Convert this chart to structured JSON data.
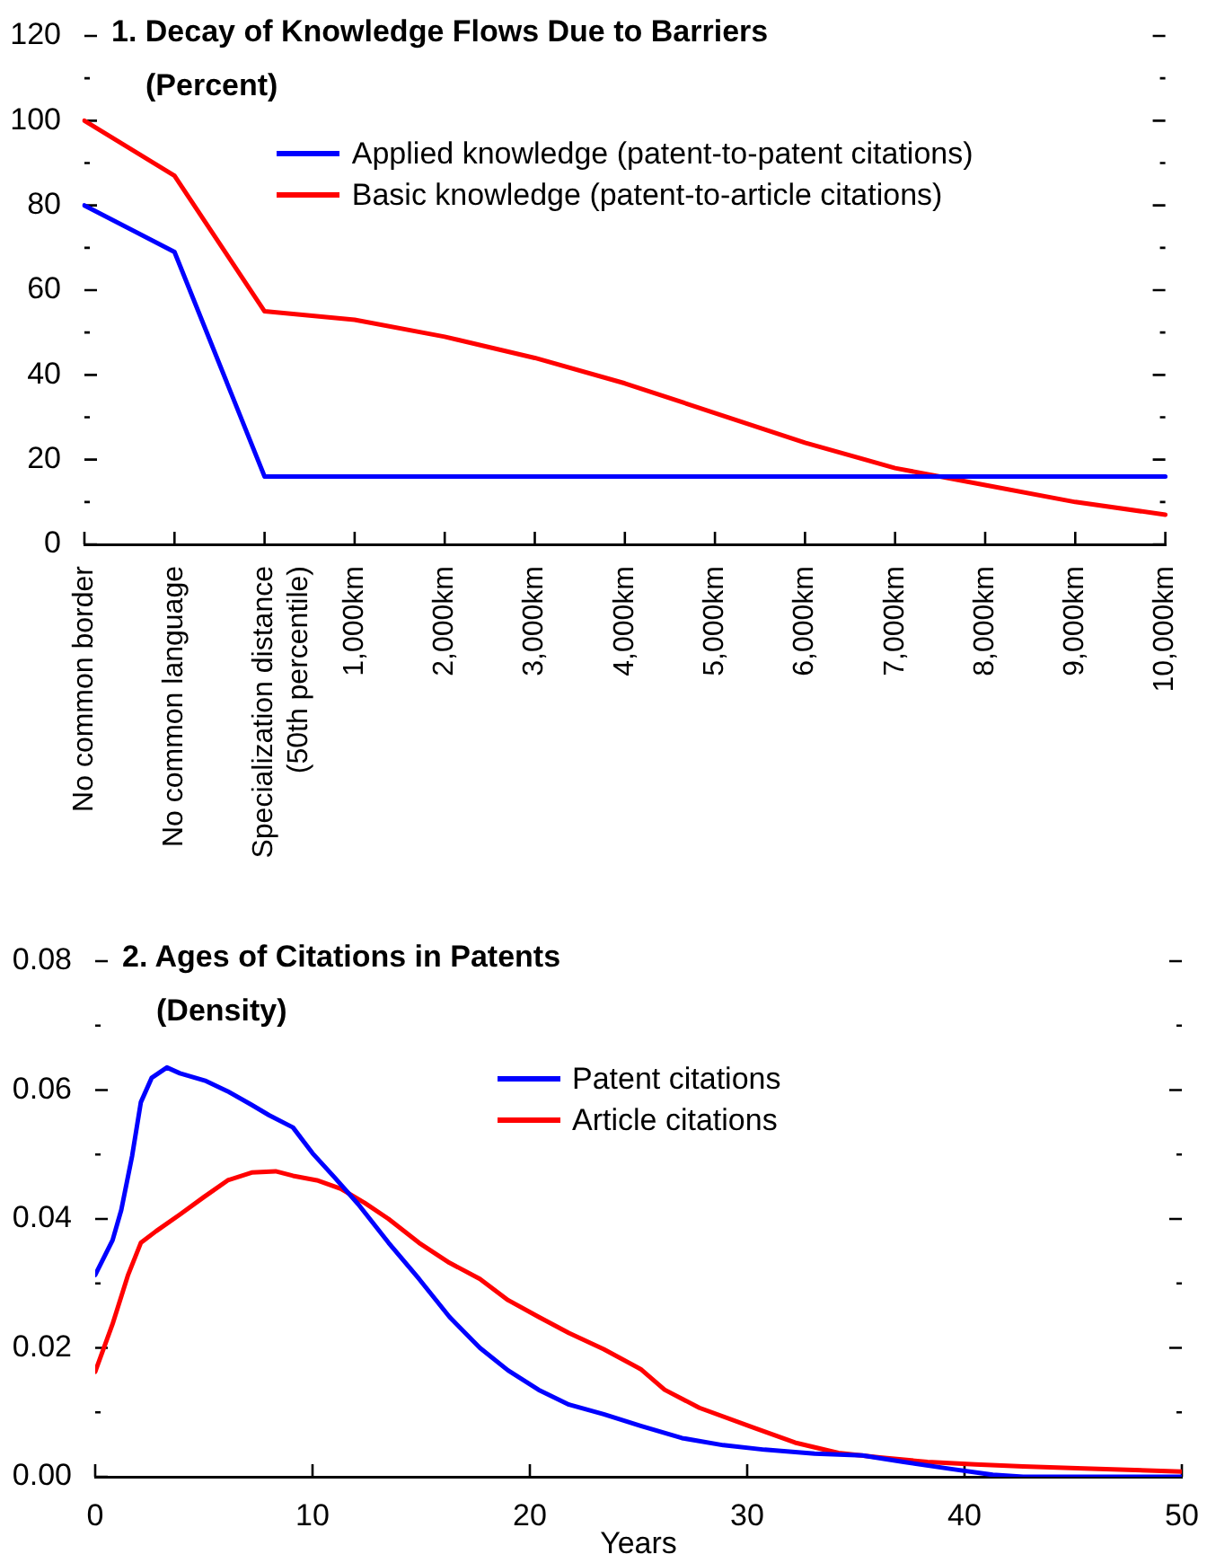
{
  "chart_data": [
    {
      "type": "line",
      "title": "1. Decay of Knowledge Flows Due to Barriers",
      "subtitle": "(Percent)",
      "categories": [
        "No common border",
        "No common language",
        "Specialization distance (50th percentile)",
        "1,000km",
        "2,000km",
        "3,000km",
        "4,000km",
        "5,000km",
        "6,000km",
        "7,000km",
        "8,000km",
        "9,000km",
        "10,000km"
      ],
      "series": [
        {
          "name": "Applied knowledge (patent-to-patent citations)",
          "color": "#0000ff",
          "values": [
            80,
            69,
            16,
            16,
            16,
            16,
            16,
            16,
            16,
            16,
            16,
            16,
            16
          ]
        },
        {
          "name": "Basic knowledge (patent-to-article citations)",
          "color": "#ff0000",
          "values": [
            100,
            87,
            55,
            53,
            49,
            44,
            38,
            31,
            24,
            18,
            14,
            10,
            7
          ]
        }
      ],
      "ylim": [
        0,
        120
      ],
      "yticks": [
        0,
        {
          "value": 10,
          "label": null
        },
        20,
        {
          "value": 30,
          "label": null
        },
        40,
        {
          "value": 50,
          "label": null
        },
        60,
        {
          "value": 70,
          "label": null
        },
        80,
        {
          "value": 90,
          "label": null
        },
        100,
        {
          "value": 110,
          "label": null
        },
        120
      ],
      "legend": "top"
    },
    {
      "type": "line",
      "title": "2. Ages of Citations in Patents",
      "subtitle": "(Density)",
      "xlabel": "Years",
      "series": [
        {
          "name": "Patent citations",
          "color": "#0000ff",
          "x": [
            0,
            0.8,
            1.2,
            1.7,
            2.1,
            2.6,
            3.3,
            3.9,
            5.1,
            6.1,
            7.2,
            8.0,
            9.1,
            10.0,
            11.0,
            12.1,
            13.5,
            14.9,
            16.3,
            17.7,
            19.0,
            20.4,
            21.8,
            23.4,
            25.1,
            27.0,
            28.9,
            30.8,
            33.1,
            35.3,
            37.2,
            39.4,
            41.3,
            42.7,
            50
          ],
          "values": [
            0.0313,
            0.0367,
            0.0414,
            0.0498,
            0.0581,
            0.0619,
            0.0635,
            0.0626,
            0.0614,
            0.0598,
            0.0577,
            0.0561,
            0.0542,
            0.0502,
            0.0465,
            0.0423,
            0.0363,
            0.0307,
            0.0248,
            0.02,
            0.0165,
            0.0135,
            0.0112,
            0.0097,
            0.0079,
            0.006,
            0.0049,
            0.0042,
            0.0036,
            0.0033,
            0.0023,
            0.0012,
            0.0003,
            0,
            0
          ]
        },
        {
          "name": "Article citations",
          "color": "#ff0000",
          "x": [
            0,
            0.8,
            1.5,
            2.1,
            2.8,
            3.9,
            5.0,
            6.1,
            7.2,
            8.3,
            9.1,
            10.2,
            11.3,
            12.4,
            13.5,
            14.9,
            16.3,
            17.7,
            19.0,
            20.4,
            21.8,
            23.4,
            25.1,
            26.2,
            27.8,
            30.3,
            32.2,
            34.2,
            36.1,
            38.3,
            40.5,
            42.7,
            45.5,
            50
          ],
          "values": [
            0.0163,
            0.0237,
            0.0312,
            0.0363,
            0.0381,
            0.0407,
            0.0434,
            0.046,
            0.0472,
            0.0474,
            0.0467,
            0.046,
            0.0447,
            0.0425,
            0.04,
            0.0363,
            0.0332,
            0.0307,
            0.0274,
            0.0248,
            0.0223,
            0.0198,
            0.0167,
            0.0135,
            0.0107,
            0.0076,
            0.0053,
            0.0037,
            0.003,
            0.0023,
            0.0019,
            0.0016,
            0.0013,
            0.0008
          ]
        }
      ],
      "xlim": [
        0,
        50
      ],
      "xticks": [
        0,
        10,
        20,
        30,
        40,
        50
      ],
      "ylim": [
        0,
        0.08
      ],
      "yticks": [
        {
          "value": 0,
          "label": "0.00"
        },
        {
          "value": 0.01,
          "label": null
        },
        0.02,
        {
          "value": 0.03,
          "label": null
        },
        0.04,
        {
          "value": 0.05,
          "label": null
        },
        0.06,
        {
          "value": 0.07,
          "label": null
        },
        0.08
      ],
      "legend": "top"
    }
  ]
}
